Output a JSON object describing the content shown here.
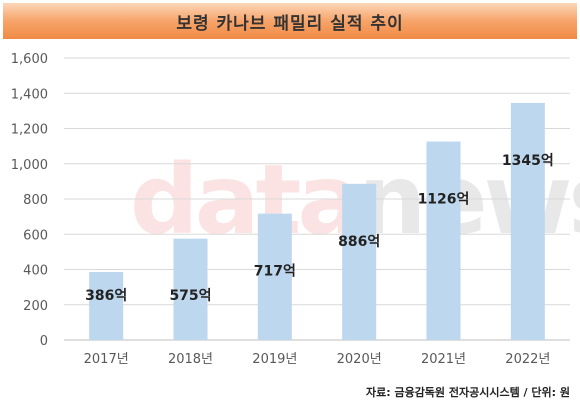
{
  "title": "보령 카나브 패밀리 실적 추이",
  "source": "자료: 금융감독원 전자공시시스템 / 단위: 원",
  "watermark": {
    "part1": "data",
    "part2": "news"
  },
  "chart_data": {
    "type": "bar",
    "categories": [
      "2017년",
      "2018년",
      "2019년",
      "2020년",
      "2021년",
      "2022년"
    ],
    "values": [
      386,
      575,
      717,
      886,
      1126,
      1345
    ],
    "data_labels": [
      "386억",
      "575억",
      "717억",
      "886억",
      "1126억",
      "1345억"
    ],
    "yticks": [
      "0",
      "200",
      "400",
      "600",
      "800",
      "1,000",
      "1,200",
      "1,400",
      "1,600"
    ],
    "ylim": [
      0,
      1600
    ],
    "grid": true,
    "bar_color": "#bdd7ee",
    "label_color": "#222222"
  }
}
